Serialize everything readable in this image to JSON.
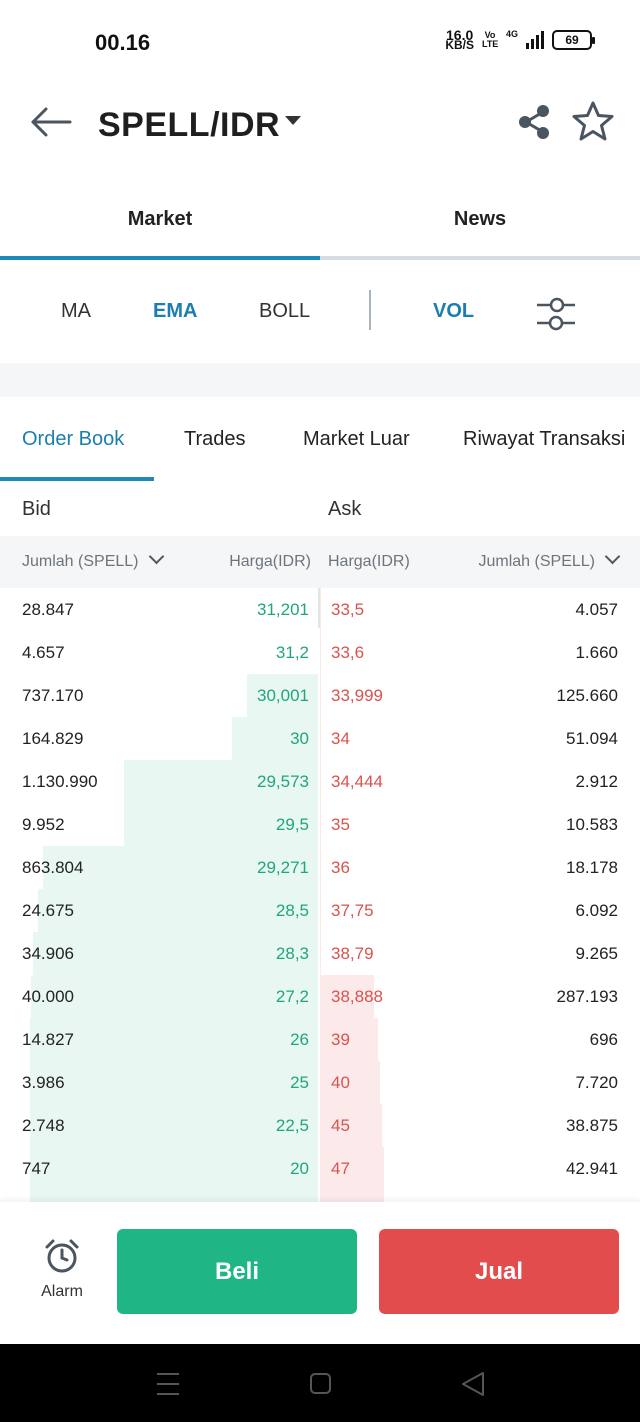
{
  "status_bar": {
    "time": "00.16",
    "net_speed_value": "16.0",
    "net_speed_unit": "KB/S",
    "volte": "Vo LTE",
    "network": "4G",
    "battery": "69"
  },
  "header": {
    "pair": "SPELL/IDR",
    "back_icon": "arrow-left-icon",
    "share_icon": "share-icon",
    "star_icon": "star-outline-icon"
  },
  "main_tabs": [
    {
      "label": "Market",
      "active": true
    },
    {
      "label": "News",
      "active": false
    }
  ],
  "indicators": {
    "ma": "MA",
    "ema": "EMA",
    "boll": "BOLL",
    "vol": "VOL",
    "settings_icon": "sliders-icon"
  },
  "sub_tabs": [
    {
      "label": "Order Book",
      "active": true
    },
    {
      "label": "Trades",
      "active": false
    },
    {
      "label": "Market Luar",
      "active": false
    },
    {
      "label": "Riwayat Transaksi",
      "active": false
    }
  ],
  "book": {
    "bid_label": "Bid",
    "ask_label": "Ask",
    "bid_amount_header": "Jumlah (SPELL)",
    "bid_price_header": "Harga(IDR)",
    "ask_price_header": "Harga(IDR)",
    "ask_amount_header": "Jumlah (SPELL)",
    "rows": [
      {
        "bid_amount": "28.847",
        "bid_price": "31,201",
        "ask_price": "33,5",
        "ask_amount": "4.057"
      },
      {
        "bid_amount": "4.657",
        "bid_price": "31,2",
        "ask_price": "33,6",
        "ask_amount": "1.660"
      },
      {
        "bid_amount": "737.170",
        "bid_price": "30,001",
        "ask_price": "33,999",
        "ask_amount": "125.660"
      },
      {
        "bid_amount": "164.829",
        "bid_price": "30",
        "ask_price": "34",
        "ask_amount": "51.094"
      },
      {
        "bid_amount": "1.130.990",
        "bid_price": "29,573",
        "ask_price": "34,444",
        "ask_amount": "2.912"
      },
      {
        "bid_amount": "9.952",
        "bid_price": "29,5",
        "ask_price": "35",
        "ask_amount": "10.583"
      },
      {
        "bid_amount": "863.804",
        "bid_price": "29,271",
        "ask_price": "36",
        "ask_amount": "18.178"
      },
      {
        "bid_amount": "24.675",
        "bid_price": "28,5",
        "ask_price": "37,75",
        "ask_amount": "6.092"
      },
      {
        "bid_amount": "34.906",
        "bid_price": "28,3",
        "ask_price": "38,79",
        "ask_amount": "9.265"
      },
      {
        "bid_amount": "40.000",
        "bid_price": "27,2",
        "ask_price": "38,888",
        "ask_amount": "287.193"
      },
      {
        "bid_amount": "14.827",
        "bid_price": "26",
        "ask_price": "39",
        "ask_amount": "696"
      },
      {
        "bid_amount": "3.986",
        "bid_price": "25",
        "ask_price": "40",
        "ask_amount": "7.720"
      },
      {
        "bid_amount": "2.748",
        "bid_price": "22,5",
        "ask_price": "45",
        "ask_amount": "38.875"
      },
      {
        "bid_amount": "747",
        "bid_price": "20",
        "ask_price": "47",
        "ask_amount": "42.941"
      }
    ]
  },
  "actions": {
    "alarm_label": "Alarm",
    "alarm_icon": "alarm-clock-icon",
    "buy_label": "Beli",
    "sell_label": "Jual"
  },
  "colors": {
    "accent": "#1d8ab8",
    "buy": "#1fb585",
    "sell": "#e24c4c",
    "bid_text": "#20a67c",
    "ask_text": "#d9534f"
  }
}
